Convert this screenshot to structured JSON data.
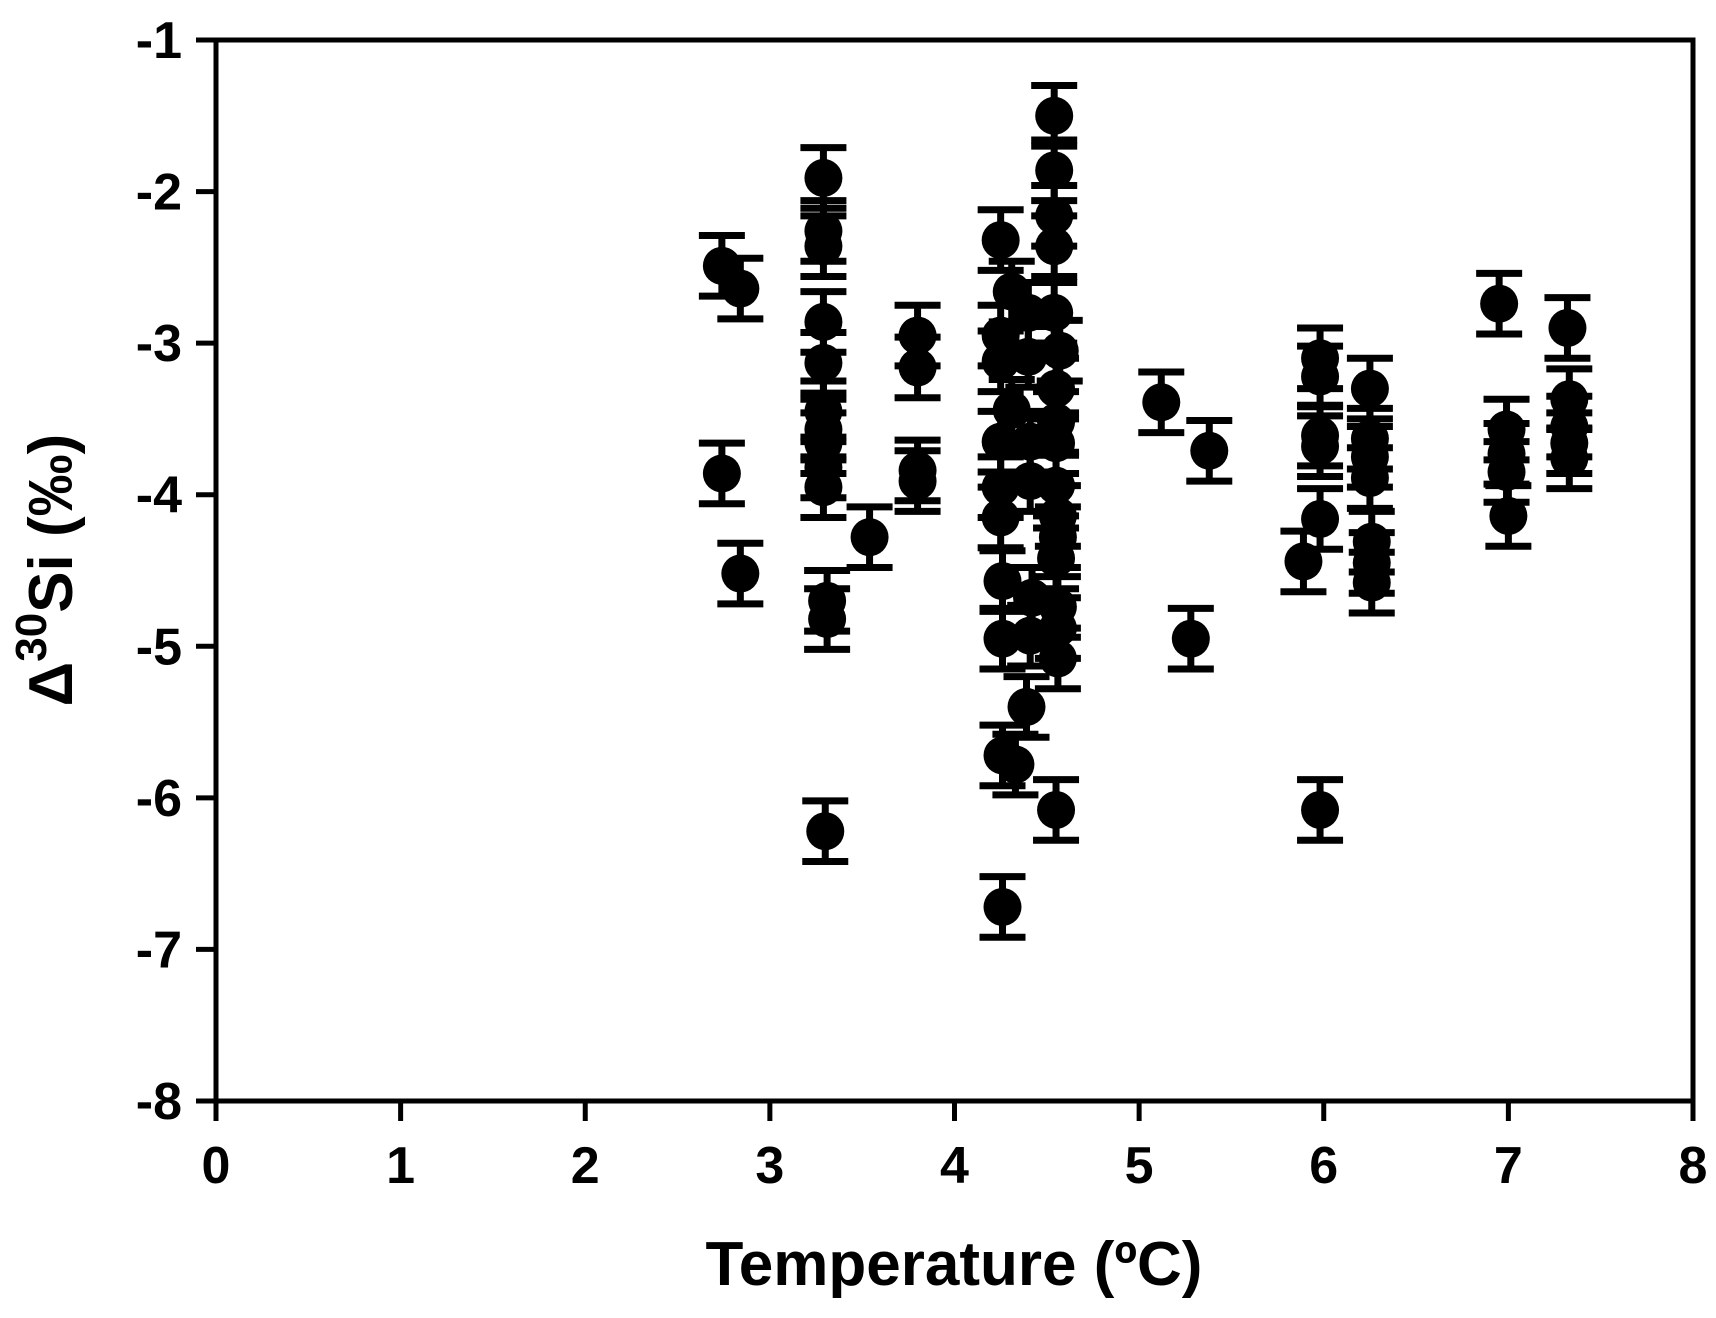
{
  "chart_data": {
    "type": "scatter",
    "title": "",
    "xlabel": "Temperature (ºC)",
    "ylabel": "Δ30Si (‰)",
    "ylabel_parts": {
      "delta": "Δ",
      "superscript": "30",
      "rest": "Si (‰)"
    },
    "xlim": [
      0,
      8
    ],
    "ylim": [
      -8,
      -1
    ],
    "x_ticks": [
      0,
      1,
      2,
      3,
      4,
      5,
      6,
      7,
      8
    ],
    "y_ticks": [
      -1,
      -2,
      -3,
      -4,
      -5,
      -6,
      -7,
      -8
    ],
    "grid": false,
    "legend": false,
    "marker": {
      "shape": "circle",
      "color": "#000000",
      "radius_px": 19
    },
    "error_bar": 0.2,
    "points": [
      [
        2.74,
        -2.49
      ],
      [
        2.74,
        -3.86
      ],
      [
        2.84,
        -2.64
      ],
      [
        2.84,
        -4.52
      ],
      [
        3.29,
        -1.91
      ],
      [
        3.29,
        -2.26
      ],
      [
        3.29,
        -2.36
      ],
      [
        3.29,
        -2.86
      ],
      [
        3.29,
        -3.13
      ],
      [
        3.29,
        -3.45
      ],
      [
        3.29,
        -3.57
      ],
      [
        3.29,
        -3.66
      ],
      [
        3.29,
        -3.82
      ],
      [
        3.29,
        -3.95
      ],
      [
        3.31,
        -4.7
      ],
      [
        3.31,
        -4.82
      ],
      [
        3.3,
        -6.22
      ],
      [
        3.54,
        -4.28
      ],
      [
        3.8,
        -2.95
      ],
      [
        3.8,
        -3.16
      ],
      [
        3.8,
        -3.84
      ],
      [
        3.8,
        -3.91
      ],
      [
        4.25,
        -2.32
      ],
      [
        4.25,
        -2.95
      ],
      [
        4.25,
        -3.12
      ],
      [
        4.25,
        -3.65
      ],
      [
        4.25,
        -3.95
      ],
      [
        4.25,
        -4.15
      ],
      [
        4.26,
        -4.57
      ],
      [
        4.26,
        -4.95
      ],
      [
        4.26,
        -5.72
      ],
      [
        4.26,
        -6.72
      ],
      [
        4.31,
        -2.66
      ],
      [
        4.31,
        -3.44
      ],
      [
        4.33,
        -5.78
      ],
      [
        4.4,
        -2.8
      ],
      [
        4.4,
        -3.09
      ],
      [
        4.41,
        -3.65
      ],
      [
        4.41,
        -3.91
      ],
      [
        4.42,
        -4.68
      ],
      [
        4.41,
        -4.93
      ],
      [
        4.39,
        -5.4
      ],
      [
        4.54,
        -1.5
      ],
      [
        4.54,
        -1.86
      ],
      [
        4.54,
        -2.16
      ],
      [
        4.54,
        -2.36
      ],
      [
        4.54,
        -2.8
      ],
      [
        4.57,
        -3.05
      ],
      [
        4.55,
        -3.3
      ],
      [
        4.55,
        -3.52
      ],
      [
        4.55,
        -3.66
      ],
      [
        4.55,
        -3.94
      ],
      [
        4.56,
        -4.14
      ],
      [
        4.56,
        -4.28
      ],
      [
        4.55,
        -4.42
      ],
      [
        4.56,
        -4.74
      ],
      [
        4.56,
        -4.88
      ],
      [
        4.56,
        -5.08
      ],
      [
        4.55,
        -6.08
      ],
      [
        5.12,
        -3.39
      ],
      [
        5.28,
        -4.95
      ],
      [
        5.38,
        -3.71
      ],
      [
        5.89,
        -4.44
      ],
      [
        5.98,
        -3.1
      ],
      [
        5.98,
        -3.22
      ],
      [
        5.98,
        -3.61
      ],
      [
        5.98,
        -3.68
      ],
      [
        5.98,
        -4.16
      ],
      [
        5.98,
        -6.08
      ],
      [
        6.25,
        -3.3
      ],
      [
        6.25,
        -3.63
      ],
      [
        6.25,
        -3.75
      ],
      [
        6.25,
        -3.89
      ],
      [
        6.26,
        -4.31
      ],
      [
        6.26,
        -4.45
      ],
      [
        6.26,
        -4.58
      ],
      [
        6.95,
        -2.74
      ],
      [
        6.99,
        -3.57
      ],
      [
        6.99,
        -3.73
      ],
      [
        6.99,
        -3.85
      ],
      [
        7.0,
        -4.14
      ],
      [
        7.32,
        -2.9
      ],
      [
        7.33,
        -3.37
      ],
      [
        7.33,
        -3.55
      ],
      [
        7.33,
        -3.66
      ],
      [
        7.33,
        -3.76
      ]
    ]
  },
  "colors": {
    "background": "#ffffff",
    "foreground": "#000000"
  }
}
